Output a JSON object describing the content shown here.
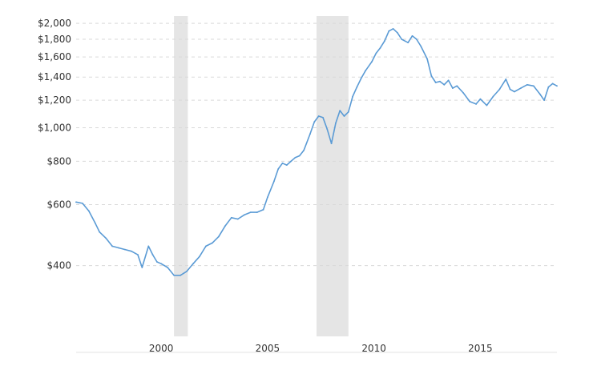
{
  "chart_data": {
    "type": "line",
    "title": "",
    "xlabel": "",
    "ylabel": "",
    "y_scale": "log",
    "ylim": [
      250,
      2100
    ],
    "xlim": [
      1996.0,
      2018.6
    ],
    "grid": "horizontal dashed",
    "legend": "none",
    "colors": {
      "line": "#5b9bd5",
      "recession_band": "#e5e5e5",
      "grid": "#d9d9d9"
    },
    "y_ticks": [
      {
        "value": 400,
        "label": "$400"
      },
      {
        "value": 600,
        "label": "$600"
      },
      {
        "value": 800,
        "label": "$800"
      },
      {
        "value": 1000,
        "label": "$1,000"
      },
      {
        "value": 1200,
        "label": "$1,200"
      },
      {
        "value": 1400,
        "label": "$1,400"
      },
      {
        "value": 1600,
        "label": "$1,600"
      },
      {
        "value": 1800,
        "label": "$1,800"
      },
      {
        "value": 2000,
        "label": "$2,000"
      }
    ],
    "x_ticks": [
      {
        "value": 2000,
        "label": "2000"
      },
      {
        "value": 2005,
        "label": "2005"
      },
      {
        "value": 2010,
        "label": "2010"
      },
      {
        "value": 2015,
        "label": "2015"
      }
    ],
    "recession_bands": [
      {
        "start": 2000.6,
        "end": 2001.25
      },
      {
        "start": 2007.3,
        "end": 2008.8
      }
    ],
    "series": [
      {
        "x": [
          1996.0,
          1996.3,
          1996.6,
          1996.9,
          1997.1,
          1997.4,
          1997.7,
          1998.0,
          1998.3,
          1998.6,
          1998.9,
          1999.1,
          1999.4,
          1999.6,
          1999.8,
          2000.0,
          2000.3,
          2000.6,
          2000.9,
          2001.2,
          2001.5,
          2001.8,
          2002.1,
          2002.4,
          2002.7,
          2003.0,
          2003.3,
          2003.6,
          2003.9,
          2004.2,
          2004.5,
          2004.8,
          2005.0,
          2005.3,
          2005.5,
          2005.7,
          2005.9,
          2006.1,
          2006.3,
          2006.5,
          2006.7,
          2007.0,
          2007.2,
          2007.4,
          2007.6,
          2007.8,
          2008.0,
          2008.2,
          2008.4,
          2008.6,
          2008.8,
          2009.0,
          2009.2,
          2009.4,
          2009.6,
          2009.9,
          2010.1,
          2010.3,
          2010.5,
          2010.7,
          2010.9,
          2011.1,
          2011.3,
          2011.6,
          2011.8,
          2012.0,
          2012.2,
          2012.5,
          2012.7,
          2012.9,
          2013.1,
          2013.3,
          2013.5,
          2013.7,
          2013.9,
          2014.2,
          2014.5,
          2014.8,
          2015.0,
          2015.3,
          2015.6,
          2015.9,
          2016.2,
          2016.4,
          2016.6,
          2016.9,
          2017.2,
          2017.5,
          2017.8,
          2018.0,
          2018.2,
          2018.4,
          2018.6
        ],
        "values": [
          610,
          605,
          575,
          530,
          500,
          480,
          455,
          450,
          445,
          440,
          430,
          395,
          455,
          430,
          410,
          405,
          395,
          375,
          375,
          385,
          405,
          425,
          455,
          465,
          485,
          520,
          550,
          545,
          560,
          570,
          570,
          580,
          630,
          700,
          760,
          790,
          780,
          800,
          820,
          830,
          860,
          960,
          1040,
          1080,
          1070,
          990,
          900,
          1030,
          1120,
          1080,
          1110,
          1230,
          1310,
          1390,
          1460,
          1550,
          1640,
          1700,
          1780,
          1900,
          1930,
          1880,
          1800,
          1760,
          1840,
          1800,
          1720,
          1580,
          1410,
          1350,
          1360,
          1330,
          1370,
          1300,
          1320,
          1260,
          1190,
          1170,
          1210,
          1160,
          1230,
          1290,
          1380,
          1290,
          1270,
          1300,
          1330,
          1320,
          1250,
          1200,
          1310,
          1340,
          1320
        ]
      }
    ]
  }
}
